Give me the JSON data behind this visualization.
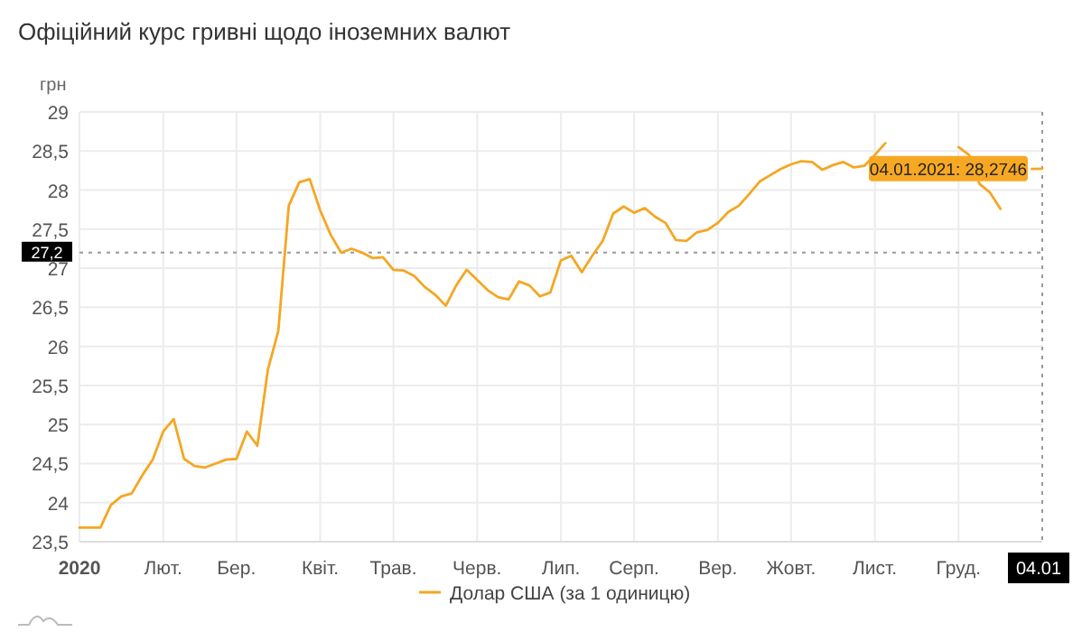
{
  "chart_data": {
    "type": "line",
    "title": "Офіційний курс гривні щодо іноземних валют",
    "ylabel": "грн",
    "categories": [
      "2020",
      null,
      null,
      null,
      null,
      null,
      null,
      null,
      "Лют.",
      null,
      null,
      null,
      null,
      null,
      null,
      "Бер.",
      null,
      null,
      null,
      null,
      null,
      null,
      null,
      "Квіт.",
      null,
      null,
      null,
      null,
      null,
      null,
      "Трав.",
      null,
      null,
      null,
      null,
      null,
      null,
      null,
      "Черв.",
      null,
      null,
      null,
      null,
      null,
      null,
      null,
      "Лип.",
      null,
      null,
      null,
      null,
      null,
      null,
      "Серп.",
      null,
      null,
      null,
      null,
      null,
      null,
      null,
      "Вер.",
      null,
      null,
      null,
      null,
      null,
      null,
      "Жовт.",
      null,
      null,
      null,
      null,
      null,
      null,
      null,
      "Лист.",
      null,
      null,
      null,
      null,
      null,
      null,
      null,
      "Груд.",
      null,
      null,
      null,
      null,
      null,
      null,
      null,
      "04.01"
    ],
    "series": [
      {
        "name": "Долар США (за 1 одиницю)",
        "color": "#f5a623",
        "values": [
          23.68,
          23.68,
          23.68,
          23.97,
          24.08,
          24.12,
          24.35,
          24.55,
          24.91,
          25.07,
          24.56,
          24.47,
          24.45,
          24.5,
          24.55,
          24.56,
          24.91,
          24.73,
          25.7,
          26.2,
          27.8,
          28.1,
          28.14,
          27.74,
          27.43,
          27.2,
          27.25,
          27.2,
          27.13,
          27.14,
          26.98,
          26.97,
          26.9,
          26.76,
          26.66,
          26.52,
          26.78,
          26.98,
          26.85,
          26.72,
          26.63,
          26.6,
          26.83,
          26.78,
          26.64,
          26.69,
          27.1,
          27.16,
          26.95,
          27.16,
          27.35,
          27.7,
          27.79,
          27.71,
          27.77,
          27.66,
          27.58,
          27.36,
          27.35,
          27.46,
          27.49,
          27.58,
          27.72,
          27.8,
          27.95,
          28.11,
          28.19,
          28.27,
          28.33,
          28.37,
          28.36,
          28.26,
          28.32,
          28.36,
          28.29,
          28.31,
          28.45,
          28.6,
          null,
          null,
          null,
          null,
          null,
          null,
          28.55,
          28.45,
          28.08,
          27.97,
          27.76,
          null,
          null,
          28.27,
          28.2746
        ]
      }
    ],
    "ylim": [
      23.5,
      29
    ],
    "yticks": [
      {
        "value": 23.5,
        "label": "23,5"
      },
      24,
      {
        "value": 24.5,
        "label": "24,5"
      },
      25,
      {
        "value": 25.5,
        "label": "25,5"
      },
      26,
      {
        "value": 26.5,
        "label": "26,5"
      },
      27,
      {
        "value": 27.5,
        "label": "27,5"
      },
      28,
      {
        "value": 28.5,
        "label": "28,5"
      },
      29
    ],
    "grid": true,
    "legend": "bottom",
    "marker": "none",
    "line_style": "solid",
    "ref_lines": [
      {
        "axis": "y",
        "value": 27.2,
        "label": "27,2",
        "line_style": "dotted"
      },
      {
        "axis": "x",
        "value": "04.01",
        "line_style": "dotted"
      }
    ],
    "annotations": [
      {
        "text": "04.01.2021: 28,2746",
        "x": "04.01",
        "y": 28.2746
      }
    ]
  }
}
